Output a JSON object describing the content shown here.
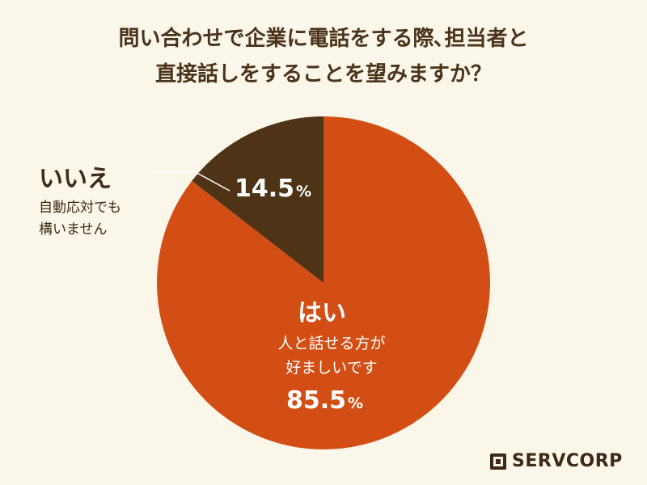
{
  "title": {
    "line1": "問い合わせで企業に電話をする際､担当者と",
    "line2": "直接話しをすることを望みますか？"
  },
  "labels": {
    "no_head": "いいえ",
    "no_sub_line1": "自動応対でも",
    "no_sub_line2": "構いません",
    "no_value": "14.5",
    "yes_head": "はい",
    "yes_sub_line1": "人と話せる方が",
    "yes_sub_line2": "好ましいです",
    "yes_value": "85.5",
    "percent_sign": "%"
  },
  "logo": {
    "text": "SERVCORP"
  },
  "colors": {
    "yes": "#d24e14",
    "no": "#4e3317",
    "text": "#3d2a16",
    "background": "#fbf6ea"
  },
  "chart_data": {
    "type": "pie",
    "categories": [
      "はい",
      "いいえ"
    ],
    "values": [
      85.5,
      14.5
    ],
    "title": "問い合わせで企業に電話をする際､担当者と直接話しをすることを望みますか？",
    "start": "12 o'clock, counter-clockwise for いいえ"
  }
}
